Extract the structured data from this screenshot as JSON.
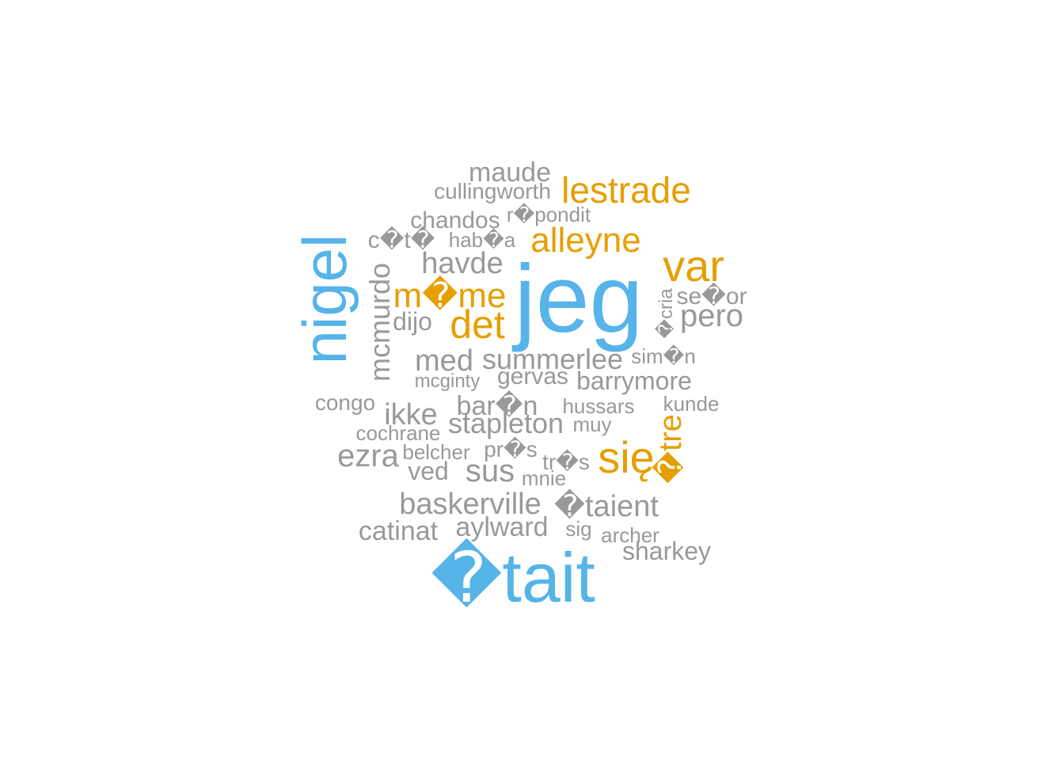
{
  "colors": {
    "blue": "#56B4E9",
    "orange": "#E69F00",
    "grey": "#999999"
  },
  "words": [
    {
      "text": "jeg",
      "color": "blue"
    },
    {
      "text": "�tait",
      "color": "blue"
    },
    {
      "text": "nigel",
      "color": "blue"
    },
    {
      "text": "var",
      "color": "orange"
    },
    {
      "text": "lestrade",
      "color": "orange"
    },
    {
      "text": "alleyne",
      "color": "orange"
    },
    {
      "text": "m�me",
      "color": "orange"
    },
    {
      "text": "det",
      "color": "orange"
    },
    {
      "text": "się",
      "color": "orange"
    },
    {
      "text": "�tre",
      "color": "orange"
    },
    {
      "text": "maude",
      "color": "grey"
    },
    {
      "text": "cullingworth",
      "color": "grey"
    },
    {
      "text": "chandos",
      "color": "grey"
    },
    {
      "text": "r�pondit",
      "color": "grey"
    },
    {
      "text": "c�t�",
      "color": "grey"
    },
    {
      "text": "hab�a",
      "color": "grey"
    },
    {
      "text": "havde",
      "color": "grey"
    },
    {
      "text": "mcmurdo",
      "color": "grey"
    },
    {
      "text": "dijo",
      "color": "grey"
    },
    {
      "text": "se�or",
      "color": "grey"
    },
    {
      "text": "pero",
      "color": "grey"
    },
    {
      "text": "�cria",
      "color": "grey"
    },
    {
      "text": "med",
      "color": "grey"
    },
    {
      "text": "summerlee",
      "color": "grey"
    },
    {
      "text": "sim�n",
      "color": "grey"
    },
    {
      "text": "mcginty",
      "color": "grey"
    },
    {
      "text": "gervas",
      "color": "grey"
    },
    {
      "text": "barrymore",
      "color": "grey"
    },
    {
      "text": "congo",
      "color": "grey"
    },
    {
      "text": "ikke",
      "color": "grey"
    },
    {
      "text": "bar�n",
      "color": "grey"
    },
    {
      "text": "hussars",
      "color": "grey"
    },
    {
      "text": "kunde",
      "color": "grey"
    },
    {
      "text": "cochrane",
      "color": "grey"
    },
    {
      "text": "stapleton",
      "color": "grey"
    },
    {
      "text": "muy",
      "color": "grey"
    },
    {
      "text": "ezra",
      "color": "grey"
    },
    {
      "text": "belcher",
      "color": "grey"
    },
    {
      "text": "pr�s",
      "color": "grey"
    },
    {
      "text": "tr�s",
      "color": "grey"
    },
    {
      "text": "ved",
      "color": "grey"
    },
    {
      "text": "sus",
      "color": "grey"
    },
    {
      "text": "mnie",
      "color": "grey"
    },
    {
      "text": "baskerville",
      "color": "grey"
    },
    {
      "text": "�taient",
      "color": "grey"
    },
    {
      "text": "catinat",
      "color": "grey"
    },
    {
      "text": "aylward",
      "color": "grey"
    },
    {
      "text": "sig",
      "color": "grey"
    },
    {
      "text": "archer",
      "color": "grey"
    },
    {
      "text": "sharkey",
      "color": "grey"
    }
  ]
}
